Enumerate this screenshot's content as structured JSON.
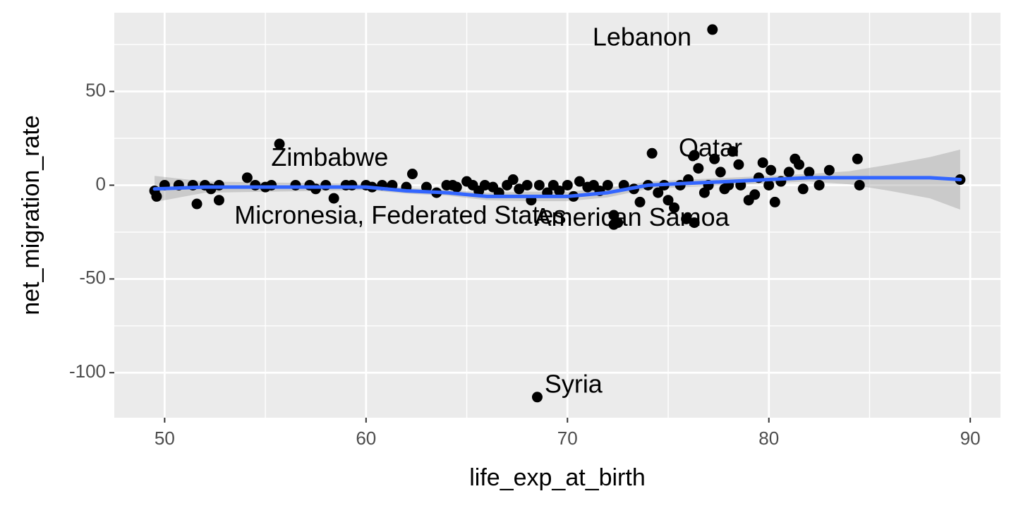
{
  "chart_data": {
    "type": "scatter",
    "title": "",
    "xlabel": "life_exp_at_birth",
    "ylabel": "net_migration_rate",
    "xlim": [
      47.5,
      91.5
    ],
    "ylim": [
      -124,
      92
    ],
    "x_ticks": [
      50,
      60,
      70,
      80,
      90
    ],
    "y_ticks": [
      -100,
      -50,
      0,
      50
    ],
    "x_minor": [
      55,
      65,
      75,
      85
    ],
    "y_minor": [
      -75,
      -25,
      25,
      75
    ],
    "grid": true,
    "panel_background": "#ebebeb",
    "point_color": "#000000",
    "smooth_color": "#3366ff",
    "band_color": "#999999",
    "points": [
      [
        49.5,
        -3
      ],
      [
        49.6,
        -6
      ],
      [
        50.0,
        0
      ],
      [
        50.7,
        0
      ],
      [
        51.4,
        0
      ],
      [
        51.6,
        -10
      ],
      [
        52.0,
        0
      ],
      [
        52.3,
        -2
      ],
      [
        52.7,
        0
      ],
      [
        52.7,
        -8
      ],
      [
        54.1,
        4
      ],
      [
        54.5,
        0
      ],
      [
        55.0,
        -1
      ],
      [
        55.3,
        0
      ],
      [
        55.7,
        22
      ],
      [
        56.5,
        0
      ],
      [
        57.2,
        0
      ],
      [
        57.5,
        -2
      ],
      [
        58.0,
        0
      ],
      [
        58.4,
        -7
      ],
      [
        59.0,
        0
      ],
      [
        59.3,
        0
      ],
      [
        60.0,
        0
      ],
      [
        60.3,
        -1
      ],
      [
        60.8,
        0
      ],
      [
        61.3,
        0
      ],
      [
        62.0,
        -1
      ],
      [
        62.3,
        6
      ],
      [
        63.0,
        -1
      ],
      [
        63.5,
        -4
      ],
      [
        64.0,
        0
      ],
      [
        64.3,
        0
      ],
      [
        64.5,
        -1
      ],
      [
        65.0,
        2
      ],
      [
        65.3,
        0
      ],
      [
        65.6,
        -3
      ],
      [
        65.9,
        0
      ],
      [
        66.3,
        -1
      ],
      [
        66.6,
        -4
      ],
      [
        67.0,
        0
      ],
      [
        67.3,
        3
      ],
      [
        67.6,
        -2
      ],
      [
        68.0,
        0
      ],
      [
        68.2,
        -8
      ],
      [
        68.6,
        0
      ],
      [
        69.0,
        -4
      ],
      [
        69.3,
        0
      ],
      [
        69.6,
        -3
      ],
      [
        70.0,
        0
      ],
      [
        70.3,
        -6
      ],
      [
        70.6,
        2
      ],
      [
        71.0,
        -1
      ],
      [
        71.3,
        0
      ],
      [
        71.6,
        -3
      ],
      [
        72.0,
        0
      ],
      [
        72.3,
        -16
      ],
      [
        72.5,
        -20
      ],
      [
        72.8,
        0
      ],
      [
        73.3,
        -2
      ],
      [
        73.6,
        -9
      ],
      [
        74.0,
        0
      ],
      [
        74.2,
        17
      ],
      [
        74.5,
        -4
      ],
      [
        74.8,
        0
      ],
      [
        75.0,
        -8
      ],
      [
        75.3,
        -12
      ],
      [
        75.6,
        0
      ],
      [
        75.9,
        -18
      ],
      [
        76.0,
        3
      ],
      [
        76.3,
        16
      ],
      [
        76.5,
        9
      ],
      [
        76.8,
        -4
      ],
      [
        77.0,
        0
      ],
      [
        77.3,
        14
      ],
      [
        77.6,
        7
      ],
      [
        77.8,
        -2
      ],
      [
        78.0,
        0
      ],
      [
        78.2,
        18
      ],
      [
        78.5,
        11
      ],
      [
        78.6,
        0
      ],
      [
        79.0,
        -8
      ],
      [
        79.3,
        -5
      ],
      [
        79.5,
        4
      ],
      [
        79.7,
        12
      ],
      [
        80.0,
        0
      ],
      [
        80.1,
        8
      ],
      [
        80.3,
        -9
      ],
      [
        80.6,
        2
      ],
      [
        81.0,
        7
      ],
      [
        81.3,
        14
      ],
      [
        81.5,
        11
      ],
      [
        81.7,
        -2
      ],
      [
        82.0,
        7
      ],
      [
        82.5,
        0
      ],
      [
        83.0,
        8
      ],
      [
        84.5,
        0
      ],
      [
        84.4,
        14
      ],
      [
        89.5,
        3
      ],
      [
        77.2,
        83
      ],
      [
        68.5,
        -113
      ],
      [
        76.3,
        -20
      ],
      [
        72.3,
        -21
      ]
    ],
    "labels": [
      {
        "text": "Lebanon",
        "x": 77.2,
        "y": 83
      },
      {
        "text": "Qatar",
        "x": 76.3,
        "y": 16
      },
      {
        "text": "Zimbabwe",
        "x": 55.7,
        "y": 22
      },
      {
        "text": "Micronesia, Federated States",
        "x": 54.2,
        "y": -2
      },
      {
        "text": "American Samoa",
        "x": 73.2,
        "y": -3
      },
      {
        "text": "Syria",
        "x": 68.5,
        "y": -113
      }
    ],
    "smooth": [
      [
        49.5,
        -2
      ],
      [
        52,
        -1
      ],
      [
        55,
        -1
      ],
      [
        58,
        -1
      ],
      [
        60,
        -1
      ],
      [
        62,
        -3
      ],
      [
        64,
        -4
      ],
      [
        66,
        -6
      ],
      [
        68,
        -6
      ],
      [
        70,
        -6
      ],
      [
        72,
        -4
      ],
      [
        74,
        0
      ],
      [
        76,
        1
      ],
      [
        78,
        2
      ],
      [
        80,
        3
      ],
      [
        82,
        4
      ],
      [
        84,
        4
      ],
      [
        86,
        4
      ],
      [
        88,
        4
      ],
      [
        89.5,
        3
      ]
    ],
    "band_upper": [
      [
        49.5,
        5
      ],
      [
        52,
        2
      ],
      [
        55,
        1.5
      ],
      [
        58,
        1
      ],
      [
        60,
        0.5
      ],
      [
        62,
        -1.5
      ],
      [
        64,
        -2.5
      ],
      [
        66,
        -4
      ],
      [
        68,
        -3.5
      ],
      [
        70,
        -3.5
      ],
      [
        72,
        -1.5
      ],
      [
        74,
        2
      ],
      [
        76,
        3
      ],
      [
        78,
        4
      ],
      [
        80,
        5
      ],
      [
        82,
        6
      ],
      [
        84,
        7.5
      ],
      [
        86,
        11
      ],
      [
        88,
        15
      ],
      [
        89.5,
        19
      ]
    ],
    "band_lower": [
      [
        49.5,
        -9
      ],
      [
        52,
        -4
      ],
      [
        55,
        -3.5
      ],
      [
        58,
        -3
      ],
      [
        60,
        -2.5
      ],
      [
        62,
        -4.5
      ],
      [
        64,
        -5.5
      ],
      [
        66,
        -8
      ],
      [
        68,
        -8.5
      ],
      [
        70,
        -8.5
      ],
      [
        72,
        -6.5
      ],
      [
        74,
        -2
      ],
      [
        76,
        -1
      ],
      [
        78,
        0
      ],
      [
        80,
        1
      ],
      [
        82,
        2
      ],
      [
        84,
        0.5
      ],
      [
        86,
        -3
      ],
      [
        88,
        -7
      ],
      [
        89.5,
        -13
      ]
    ]
  }
}
